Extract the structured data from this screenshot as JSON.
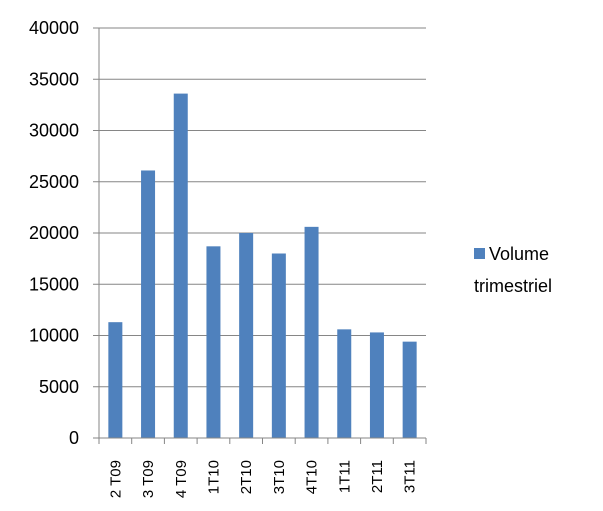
{
  "chart_data": {
    "type": "bar",
    "categories": [
      "2 T09",
      "3 T09",
      "4 T09",
      "1T10",
      "2T10",
      "3T10",
      "4T10",
      "1T11",
      "2T11",
      "3T11"
    ],
    "series": [
      {
        "name": "Volume trimestriel",
        "values": [
          11300,
          26100,
          33600,
          18700,
          20000,
          18000,
          20600,
          10600,
          10300,
          9400
        ]
      }
    ],
    "ylim": [
      0,
      40000
    ],
    "yticks": [
      0,
      5000,
      10000,
      15000,
      20000,
      25000,
      30000,
      35000,
      40000
    ],
    "grid": true,
    "legend": "right",
    "legend_lines": [
      "Volume",
      "trimestriel"
    ],
    "colors": {
      "bar": "#4f81bd",
      "grid": "#868686",
      "axis": "#868686"
    }
  }
}
